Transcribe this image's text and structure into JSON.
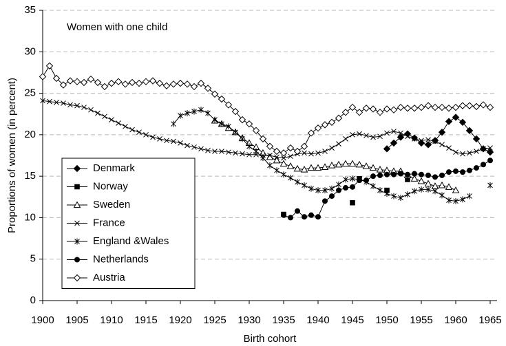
{
  "chart_data": {
    "type": "line",
    "annotation": "Women with one child",
    "x_label": "Birth cohort",
    "y_label": "Proportions of women (in percent)",
    "x": [
      1900,
      1901,
      1902,
      1903,
      1904,
      1905,
      1906,
      1907,
      1908,
      1909,
      1910,
      1911,
      1912,
      1913,
      1914,
      1915,
      1916,
      1917,
      1918,
      1919,
      1920,
      1921,
      1922,
      1923,
      1924,
      1925,
      1926,
      1927,
      1928,
      1929,
      1930,
      1931,
      1932,
      1933,
      1934,
      1935,
      1936,
      1937,
      1938,
      1939,
      1940,
      1941,
      1942,
      1943,
      1944,
      1945,
      1946,
      1947,
      1948,
      1949,
      1950,
      1951,
      1952,
      1953,
      1954,
      1955,
      1956,
      1957,
      1958,
      1959,
      1960,
      1961,
      1962,
      1963,
      1964,
      1965
    ],
    "xlim": [
      1900,
      1966
    ],
    "xticks": [
      1900,
      1905,
      1910,
      1915,
      1920,
      1925,
      1930,
      1935,
      1940,
      1945,
      1950,
      1955,
      1960,
      1965
    ],
    "ylim": [
      0,
      35
    ],
    "yticks": [
      0,
      5,
      10,
      15,
      20,
      25,
      30,
      35
    ],
    "grid": true,
    "legend": "lower left",
    "series": [
      {
        "name": "Denmark",
        "color": "#000000",
        "marker": "diamond-filled",
        "values": [
          null,
          null,
          null,
          null,
          null,
          null,
          null,
          null,
          null,
          null,
          null,
          null,
          null,
          null,
          null,
          null,
          null,
          null,
          null,
          null,
          null,
          null,
          null,
          null,
          null,
          null,
          null,
          null,
          null,
          null,
          null,
          null,
          null,
          null,
          null,
          null,
          null,
          null,
          null,
          null,
          null,
          null,
          null,
          null,
          null,
          null,
          null,
          null,
          null,
          null,
          18.3,
          19.0,
          19.7,
          20.1,
          19.6,
          19.0,
          18.8,
          19.3,
          20.3,
          21.6,
          22.1,
          21.5,
          20.5,
          19.5,
          18.3,
          17.9
        ]
      },
      {
        "name": "Norway",
        "color": "#000000",
        "marker": "square-filled",
        "line": false,
        "values": [
          null,
          null,
          null,
          null,
          null,
          null,
          null,
          null,
          null,
          null,
          null,
          null,
          null,
          null,
          null,
          null,
          null,
          null,
          null,
          null,
          null,
          null,
          null,
          null,
          null,
          null,
          null,
          null,
          null,
          null,
          null,
          null,
          null,
          null,
          null,
          10.4,
          null,
          null,
          null,
          null,
          null,
          null,
          null,
          null,
          null,
          11.8,
          14.7,
          null,
          null,
          null,
          13.3,
          null,
          null,
          14.6,
          null,
          null,
          null,
          null,
          null,
          null,
          null,
          null,
          null,
          null,
          null,
          null
        ]
      },
      {
        "name": "Sweden",
        "color": "#000000",
        "marker": "triangle-open",
        "values": [
          null,
          null,
          null,
          null,
          null,
          null,
          null,
          null,
          null,
          null,
          null,
          null,
          null,
          null,
          null,
          null,
          null,
          null,
          null,
          null,
          null,
          null,
          null,
          null,
          null,
          21.7,
          21.3,
          20.8,
          20.3,
          19.6,
          19.0,
          18.5,
          17.8,
          17.3,
          16.9,
          16.5,
          16.2,
          15.9,
          15.8,
          16.0,
          16.0,
          16.1,
          16.3,
          16.4,
          16.5,
          16.5,
          16.4,
          16.2,
          16.0,
          15.8,
          15.7,
          15.6,
          15.6,
          15.1,
          14.7,
          14.4,
          14.1,
          13.8,
          13.9,
          13.7,
          13.3,
          null,
          null,
          null,
          null,
          null
        ]
      },
      {
        "name": "France",
        "color": "#000000",
        "marker": "x",
        "values": [
          24.1,
          24.0,
          23.9,
          23.8,
          23.6,
          23.5,
          23.3,
          23.0,
          22.6,
          22.2,
          21.8,
          21.4,
          21.0,
          20.6,
          20.3,
          20.0,
          19.7,
          19.5,
          19.3,
          19.2,
          19.0,
          18.7,
          18.5,
          18.3,
          18.1,
          18.0,
          18.0,
          17.9,
          17.8,
          17.7,
          17.6,
          17.6,
          17.5,
          17.5,
          17.3,
          17.2,
          17.4,
          17.7,
          17.8,
          17.7,
          17.8,
          18.0,
          18.4,
          18.9,
          19.5,
          20.0,
          20.1,
          19.9,
          19.7,
          19.8,
          20.2,
          20.4,
          20.2,
          19.8,
          19.5,
          19.3,
          19.4,
          19.2,
          18.8,
          18.4,
          17.9,
          17.7,
          17.8,
          18.0,
          18.3,
          18.4
        ]
      },
      {
        "name": "England &Wales",
        "color": "#000000",
        "marker": "asterisk",
        "values": [
          null,
          null,
          null,
          null,
          null,
          null,
          null,
          null,
          null,
          null,
          null,
          null,
          null,
          null,
          null,
          null,
          null,
          null,
          null,
          21.3,
          22.3,
          22.6,
          22.8,
          23.0,
          22.6,
          21.8,
          21.3,
          21.0,
          20.3,
          19.5,
          18.6,
          18.0,
          17.2,
          16.3,
          15.7,
          15.2,
          14.8,
          14.3,
          13.9,
          13.5,
          13.3,
          13.3,
          13.5,
          14.0,
          14.6,
          14.7,
          14.6,
          14.3,
          13.8,
          13.3,
          12.9,
          12.6,
          12.4,
          12.8,
          13.2,
          13.4,
          13.4,
          13.2,
          12.7,
          12.1,
          12.0,
          12.2,
          12.6,
          null,
          null,
          13.9
        ]
      },
      {
        "name": "Netherlands",
        "color": "#000000",
        "marker": "circle-filled",
        "values": [
          null,
          null,
          null,
          null,
          null,
          null,
          null,
          null,
          null,
          null,
          null,
          null,
          null,
          null,
          null,
          null,
          null,
          null,
          null,
          null,
          null,
          null,
          null,
          null,
          null,
          null,
          null,
          null,
          null,
          null,
          null,
          null,
          null,
          null,
          null,
          10.3,
          10.0,
          10.8,
          10.1,
          10.3,
          10.1,
          12.0,
          12.6,
          13.3,
          13.6,
          13.7,
          14.5,
          14.5,
          15.0,
          15.1,
          15.2,
          15.2,
          15.3,
          15.2,
          15.3,
          15.2,
          15.1,
          14.9,
          15.1,
          15.5,
          15.6,
          15.5,
          15.7,
          16.0,
          16.4,
          16.9
        ]
      },
      {
        "name": "Austria",
        "color": "#000000",
        "marker": "diamond-open",
        "values": [
          27,
          28.3,
          26.8,
          26,
          26.5,
          26.4,
          26.3,
          26.7,
          26.3,
          25.8,
          26.2,
          26.4,
          26.1,
          26.3,
          26.2,
          26.4,
          26.5,
          26.2,
          25.9,
          26.1,
          26.2,
          26.1,
          25.8,
          26.2,
          25.6,
          24.9,
          24.3,
          23.6,
          22.8,
          21.8,
          21.3,
          20.5,
          19.5,
          18.6,
          18,
          17.8,
          18.4,
          18,
          18.6,
          20.2,
          20.8,
          21.2,
          21.5,
          22,
          22.7,
          23.3,
          22.7,
          23.2,
          23.1,
          22.7,
          23.1,
          23,
          23.3,
          23.2,
          23.2,
          23.3,
          23.5,
          23.3,
          23.3,
          23.2,
          23.3,
          23.5,
          23.5,
          23.4,
          23.6,
          23.3
        ]
      }
    ]
  }
}
